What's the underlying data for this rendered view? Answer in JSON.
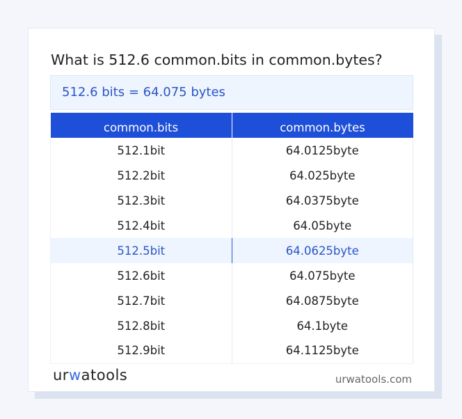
{
  "title": "What is 512.6 common.bits in common.bytes?",
  "result": "512.6 bits = 64.075 bytes",
  "table": {
    "headers": [
      "common.bits",
      "common.bytes"
    ],
    "rows": [
      [
        "512.1bit",
        "64.0125byte"
      ],
      [
        "512.2bit",
        "64.025byte"
      ],
      [
        "512.3bit",
        "64.0375byte"
      ],
      [
        "512.4bit",
        "64.05byte"
      ],
      [
        "512.5bit",
        "64.0625byte"
      ],
      [
        "512.6bit",
        "64.075byte"
      ],
      [
        "512.7bit",
        "64.0875byte"
      ],
      [
        "512.8bit",
        "64.1byte"
      ],
      [
        "512.9bit",
        "64.1125byte"
      ]
    ],
    "highlighted_row": 4
  },
  "logo": {
    "a": "ur",
    "b": "w",
    "c": "atools"
  },
  "site": "urwatools.com",
  "colors": {
    "accent": "#1e4fd8",
    "highlight_bg": "#eef5fe",
    "highlight_text": "#2a55c8"
  }
}
